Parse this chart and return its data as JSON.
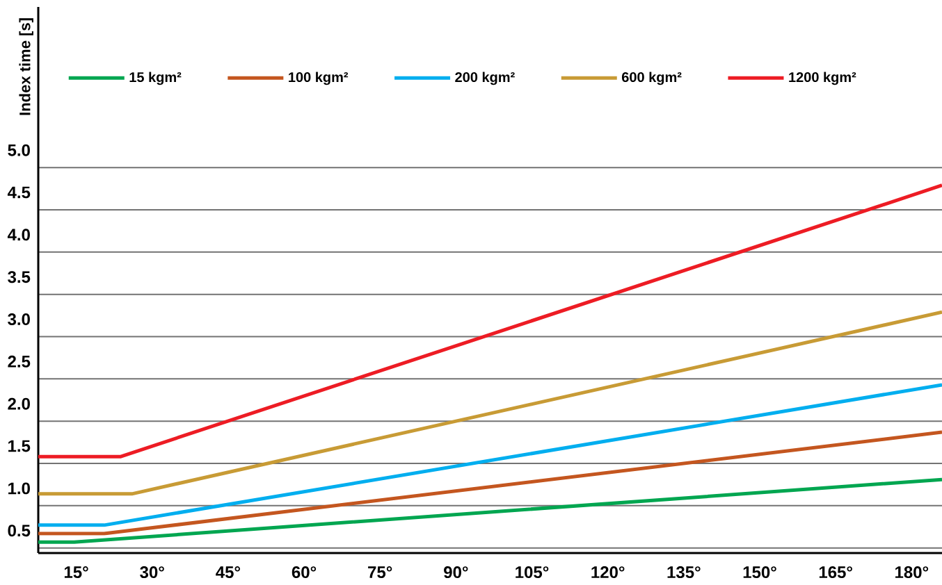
{
  "chart_data": {
    "type": "line",
    "ylabel": "Index time [s]",
    "series": [
      {
        "name": "15 kgm²",
        "color": "#00a650",
        "x": [
          7.5,
          14.6,
          186
        ],
        "values": [
          0.57,
          0.57,
          1.31
        ]
      },
      {
        "name": "100 kgm²",
        "color": "#c4561f",
        "x": [
          7.5,
          20.5,
          186
        ],
        "values": [
          0.67,
          0.67,
          1.87
        ]
      },
      {
        "name": "200 kgm²",
        "color": "#00aeef",
        "x": [
          7.5,
          20.5,
          186
        ],
        "values": [
          0.77,
          0.77,
          2.43
        ]
      },
      {
        "name": "600 kgm²",
        "color": "#c89b35",
        "x": [
          7.5,
          26,
          186
        ],
        "values": [
          1.14,
          1.14,
          3.29
        ]
      },
      {
        "name": "1200 kgm²",
        "color": "#ed1c24",
        "x": [
          7.5,
          23.7,
          186
        ],
        "values": [
          1.58,
          1.58,
          4.79
        ]
      }
    ],
    "xlim": [
      7.5,
      186
    ],
    "xticks": [
      {
        "value": 15,
        "label": "15°"
      },
      {
        "value": 30,
        "label": "30°"
      },
      {
        "value": 45,
        "label": "45°"
      },
      {
        "value": 60,
        "label": "60°"
      },
      {
        "value": 75,
        "label": "75°"
      },
      {
        "value": 90,
        "label": "90°"
      },
      {
        "value": 105,
        "label": "105°"
      },
      {
        "value": 120,
        "label": "120°"
      },
      {
        "value": 135,
        "label": "135°"
      },
      {
        "value": 150,
        "label": "150°"
      },
      {
        "value": 165,
        "label": "165°"
      },
      {
        "value": 180,
        "label": "180°"
      }
    ],
    "ylim": [
      0.44,
      6.9
    ],
    "yticks": [
      {
        "value": 0.5,
        "label": "0.5"
      },
      {
        "value": 1.0,
        "label": "1.0"
      },
      {
        "value": 1.5,
        "label": "1.5"
      },
      {
        "value": 2.0,
        "label": "2.0"
      },
      {
        "value": 2.5,
        "label": "2.5"
      },
      {
        "value": 3.0,
        "label": "3.0"
      },
      {
        "value": 3.5,
        "label": "3.5"
      },
      {
        "value": 4.0,
        "label": "4.0"
      },
      {
        "value": 4.5,
        "label": "4.5"
      },
      {
        "value": 5.0,
        "label": "5.0"
      }
    ],
    "grid": "y",
    "legend": "top",
    "marker": "none",
    "line_style": "solid"
  }
}
